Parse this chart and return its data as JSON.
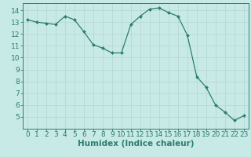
{
  "x": [
    0,
    1,
    2,
    3,
    4,
    5,
    6,
    7,
    8,
    9,
    10,
    11,
    12,
    13,
    14,
    15,
    16,
    17,
    18,
    19,
    20,
    21,
    22,
    23
  ],
  "y": [
    13.2,
    13.0,
    12.9,
    12.8,
    13.5,
    13.2,
    12.2,
    11.1,
    10.8,
    10.4,
    10.4,
    12.8,
    13.5,
    14.1,
    14.2,
    13.8,
    13.5,
    11.9,
    8.4,
    7.5,
    6.0,
    5.4,
    4.7,
    5.1
  ],
  "line_color": "#2d7d6f",
  "marker": "D",
  "marker_size": 2.0,
  "bg_color": "#c8eae6",
  "plot_bg_color": "#c8eae6",
  "grid_color": "#b8d8d4",
  "tick_color": "#2d7d6f",
  "label_color": "#2d7d6f",
  "xlabel": "Humidex (Indice chaleur)",
  "xlim": [
    -0.5,
    23.5
  ],
  "ylim": [
    4.0,
    14.6
  ],
  "yticks": [
    5,
    6,
    7,
    8,
    9,
    10,
    11,
    12,
    13,
    14
  ],
  "xticks": [
    0,
    1,
    2,
    3,
    4,
    5,
    6,
    7,
    8,
    9,
    10,
    11,
    12,
    13,
    14,
    15,
    16,
    17,
    18,
    19,
    20,
    21,
    22,
    23
  ],
  "font_size_label": 7.5,
  "font_size_tick": 6.5
}
